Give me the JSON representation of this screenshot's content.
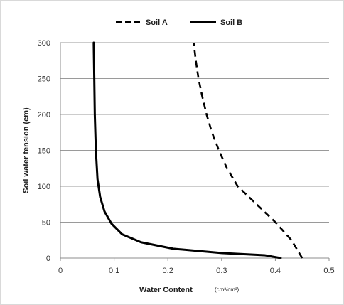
{
  "chart_data": {
    "type": "line",
    "title": "",
    "xlabel": "Water Content",
    "xlabel_unit": "(cm³/cm³)",
    "ylabel": "Soil water tension (cm)",
    "xlim": [
      0,
      0.5
    ],
    "ylim": [
      0,
      300
    ],
    "x_ticks": [
      "0",
      "0.1",
      "0.2",
      "0.3",
      "0.4",
      "0.5"
    ],
    "y_ticks": [
      "0",
      "50",
      "100",
      "150",
      "200",
      "250",
      "300"
    ],
    "grid": "horizontal",
    "legend_position": "top",
    "series": [
      {
        "name": "Soil A",
        "style": "dashed",
        "color": "#000000",
        "points": [
          [
            0.45,
            0
          ],
          [
            0.43,
            25
          ],
          [
            0.4,
            50
          ],
          [
            0.365,
            75
          ],
          [
            0.33,
            100
          ],
          [
            0.31,
            125
          ],
          [
            0.295,
            150
          ],
          [
            0.282,
            175
          ],
          [
            0.272,
            200
          ],
          [
            0.264,
            225
          ],
          [
            0.257,
            250
          ],
          [
            0.252,
            275
          ],
          [
            0.248,
            300
          ]
        ]
      },
      {
        "name": "Soil B",
        "style": "solid",
        "color": "#000000",
        "points": [
          [
            0.41,
            0
          ],
          [
            0.38,
            4
          ],
          [
            0.3,
            7
          ],
          [
            0.21,
            13
          ],
          [
            0.15,
            22
          ],
          [
            0.115,
            33
          ],
          [
            0.095,
            48
          ],
          [
            0.082,
            65
          ],
          [
            0.074,
            85
          ],
          [
            0.069,
            110
          ],
          [
            0.066,
            150
          ],
          [
            0.064,
            200
          ],
          [
            0.063,
            250
          ],
          [
            0.062,
            300
          ]
        ]
      }
    ]
  }
}
